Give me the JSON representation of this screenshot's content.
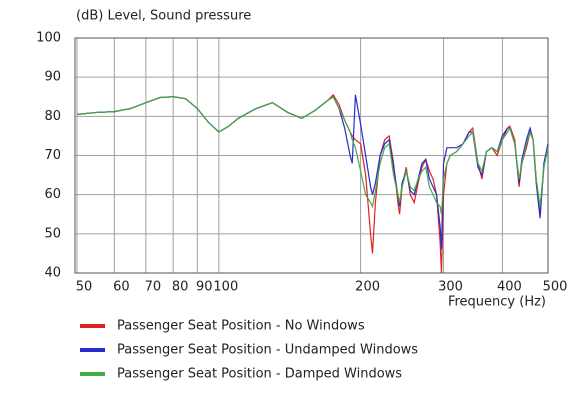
{
  "chart_data": {
    "type": "line",
    "y_label": "(dB)  Level, Sound pressure",
    "x_label": "Frequency  (Hz)",
    "xscale": "log",
    "grid": true,
    "xlim": [
      49.5,
      500
    ],
    "ylim": [
      40,
      100
    ],
    "xticks": [
      50,
      60,
      70,
      80,
      90,
      100,
      200,
      300,
      400,
      500
    ],
    "yticks": [
      40,
      50,
      60,
      70,
      80,
      90,
      100
    ],
    "x": [
      50,
      55,
      60,
      65,
      70,
      75,
      80,
      85,
      90,
      95,
      100,
      105,
      110,
      120,
      130,
      140,
      150,
      160,
      170,
      175,
      180,
      185,
      190,
      192,
      195,
      200,
      205,
      210,
      212,
      215,
      220,
      225,
      230,
      235,
      240,
      242,
      245,
      250,
      255,
      260,
      265,
      270,
      275,
      280,
      285,
      290,
      295,
      297,
      300,
      305,
      310,
      320,
      330,
      340,
      346,
      355,
      362,
      370,
      380,
      390,
      400,
      410,
      415,
      425,
      434,
      440,
      450,
      458,
      465,
      472,
      481,
      490,
      500
    ],
    "series": [
      {
        "name": "Passenger Seat Position - No Windows",
        "color": "#dd2222",
        "values": [
          80.5,
          81,
          81.2,
          82,
          83.5,
          84.8,
          85,
          84.5,
          82,
          78.5,
          76,
          77.5,
          79.5,
          82,
          83.5,
          81,
          79.5,
          81.5,
          84,
          85.5,
          83,
          79,
          76,
          75,
          74,
          73,
          65,
          50,
          45,
          58,
          70,
          74,
          75,
          68,
          58,
          55,
          62,
          67,
          60,
          58,
          63,
          67,
          69,
          66,
          64,
          60,
          48,
          40,
          60,
          68,
          70,
          71,
          73,
          76,
          77,
          68,
          64,
          71,
          72,
          70,
          74,
          77,
          77.5,
          74,
          62,
          68,
          72,
          76,
          74,
          64,
          55,
          67,
          73
        ]
      },
      {
        "name": "Passenger Seat Position - Undamped Windows",
        "color": "#2a2ad0",
        "values": [
          80.5,
          81,
          81.2,
          82,
          83.5,
          84.8,
          85,
          84.5,
          82,
          78.5,
          76,
          77.5,
          79.5,
          82,
          83.5,
          81,
          79.5,
          81.5,
          84,
          85,
          82,
          77,
          70,
          68,
          85.5,
          78,
          70,
          62,
          60,
          63,
          70,
          73,
          74,
          67,
          60,
          57,
          63,
          66,
          61,
          60,
          64,
          68,
          69,
          64,
          62,
          60,
          52,
          46,
          68,
          72,
          72,
          72,
          73,
          76,
          76,
          67,
          65,
          71,
          72,
          71,
          75,
          77,
          77,
          73,
          63,
          69,
          74,
          77,
          74,
          63,
          54,
          68,
          73
        ]
      },
      {
        "name": "Passenger Seat Position - Damped Windows",
        "color": "#44aa44",
        "values": [
          80.5,
          81,
          81.2,
          82,
          83.5,
          84.8,
          85,
          84.5,
          82,
          78.5,
          76,
          77.5,
          79.5,
          82,
          83.5,
          81,
          79.5,
          81.5,
          84,
          85,
          82,
          79,
          76,
          74,
          72,
          66,
          60,
          58,
          57,
          61,
          68,
          72,
          73,
          65,
          60,
          58,
          62,
          66,
          62,
          61,
          64,
          66,
          67,
          62,
          60,
          58,
          57,
          55,
          64,
          68,
          70,
          71,
          73,
          75,
          76,
          68,
          66,
          71,
          72,
          71,
          74,
          76,
          77,
          73,
          64,
          68,
          73,
          76,
          74,
          64,
          57,
          67,
          72
        ]
      }
    ]
  }
}
